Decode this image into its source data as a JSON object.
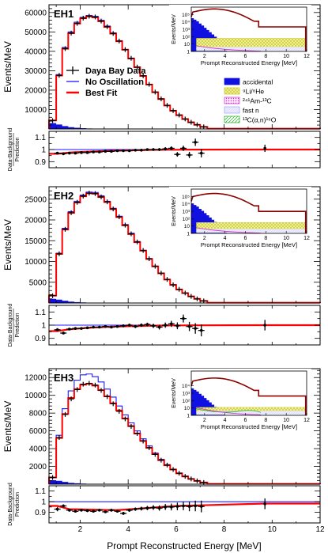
{
  "figure": {
    "x_axis_title": "Prompt Reconstructed Energy [MeV]",
    "y_axis_title": "Events/MeV",
    "ratio_axis_title_line1": "Data-Background",
    "ratio_axis_title_line2": "Prediction",
    "x_ticks": [
      "2",
      "4",
      "6",
      "8",
      "10",
      "12"
    ]
  },
  "legend": {
    "data_label": "Daya Bay Data",
    "no_osc_label": "No Oscillation",
    "best_fit_label": "Best Fit"
  },
  "inset_legend": {
    "entries": [
      {
        "name": "accidental",
        "label": "accidental",
        "color": "#1010e0",
        "pattern": "solid"
      },
      {
        "name": "li-he",
        "label": "⁹Li/⁸He",
        "color": "#d9d92a",
        "pattern": "cross"
      },
      {
        "name": "am-c",
        "label": "²⁴¹Am-¹³C",
        "color": "#d030d0",
        "pattern": "dots"
      },
      {
        "name": "fast-n",
        "label": "fast n",
        "color": "#a0a0ff",
        "pattern": "light"
      },
      {
        "name": "c-alpha",
        "label": "¹³C(α,n)¹⁶O",
        "color": "#20b020",
        "pattern": "hatch"
      }
    ]
  },
  "colors": {
    "data": "#000000",
    "no_oscillation": "#1a1aff",
    "best_fit": "#ff0000",
    "accidental_fill": "#1010e0",
    "inset_spectrum": "#8b0000"
  },
  "chart_data": [
    {
      "type": "bar",
      "panel": "main",
      "label": "EH1",
      "xlim": [
        0.7,
        12
      ],
      "ylim": [
        0,
        64000
      ],
      "yticks": [
        10000,
        20000,
        30000,
        40000,
        50000,
        60000
      ],
      "bin_edges": [
        0.7,
        1.0,
        1.25,
        1.5,
        1.75,
        2.0,
        2.25,
        2.5,
        2.75,
        3.0,
        3.25,
        3.5,
        3.75,
        4.0,
        4.25,
        4.5,
        4.75,
        5.0,
        5.25,
        5.5,
        5.75,
        6.0,
        6.25,
        6.5,
        6.75,
        7.0,
        7.3,
        12.0
      ],
      "series": [
        {
          "name": "No Oscillation",
          "values": [
            4500,
            28000,
            42000,
            50000,
            55000,
            57500,
            58500,
            58000,
            56000,
            53000,
            49500,
            45500,
            41000,
            36500,
            32000,
            27500,
            23000,
            19000,
            15500,
            12200,
            9500,
            7200,
            5200,
            3500,
            2200,
            1100,
            150
          ]
        },
        {
          "name": "Best Fit",
          "values": [
            4400,
            27500,
            41300,
            49300,
            54300,
            57000,
            58000,
            57500,
            55500,
            52600,
            49100,
            45200,
            40800,
            36300,
            31800,
            27300,
            22900,
            18900,
            15400,
            12100,
            9400,
            7100,
            5100,
            3400,
            2150,
            1080,
            145
          ]
        },
        {
          "name": "Daya Bay Data",
          "values": [
            4300,
            27600,
            41400,
            49400,
            54400,
            57100,
            58100,
            57700,
            55600,
            52700,
            49200,
            45300,
            40900,
            36400,
            31900,
            27400,
            23000,
            19000,
            15500,
            12150,
            9450,
            7150,
            5150,
            3450,
            2170,
            1090,
            150
          ]
        },
        {
          "name": "accidental",
          "values": [
            3000,
            2300,
            1500,
            900,
            600,
            400,
            250,
            150,
            100,
            60,
            40,
            20,
            10,
            5,
            0,
            0,
            0,
            0,
            0,
            0,
            0,
            0,
            0,
            0,
            0,
            0,
            0
          ]
        }
      ]
    },
    {
      "type": "scatter",
      "panel": "ratio",
      "label": "EH1",
      "xlim": [
        0.7,
        12
      ],
      "ylim": [
        0.85,
        1.15
      ],
      "yticks": [
        0.9,
        1,
        1.1
      ],
      "x": [
        1.05,
        1.3,
        1.55,
        1.8,
        2.05,
        2.3,
        2.55,
        2.8,
        3.05,
        3.3,
        3.55,
        3.8,
        4.05,
        4.3,
        4.55,
        4.8,
        5.05,
        5.3,
        5.55,
        5.8,
        6.05,
        6.3,
        6.55,
        6.8,
        7.05,
        9.7
      ],
      "y": [
        0.97,
        0.965,
        0.97,
        0.97,
        0.975,
        0.975,
        0.98,
        0.98,
        0.985,
        0.985,
        0.99,
        0.99,
        0.99,
        0.995,
        0.995,
        1.0,
        1.0,
        1.0,
        1.005,
        1.01,
        0.96,
        1.01,
        0.955,
        1.06,
        0.97,
        1.01
      ],
      "yerr": [
        0.008,
        0.007,
        0.006,
        0.006,
        0.006,
        0.006,
        0.006,
        0.006,
        0.006,
        0.006,
        0.007,
        0.007,
        0.007,
        0.008,
        0.009,
        0.01,
        0.011,
        0.012,
        0.014,
        0.016,
        0.019,
        0.022,
        0.026,
        0.03,
        0.035,
        0.03
      ],
      "fit_y": [
        0.965,
        0.97,
        0.975,
        0.978,
        0.98,
        0.982,
        0.984,
        0.986,
        0.988,
        0.99,
        0.99,
        0.992,
        0.993,
        0.994,
        0.995,
        0.996,
        0.997,
        0.997,
        0.998,
        0.998,
        0.998,
        0.999,
        0.999,
        0.999,
        0.999,
        1.0
      ]
    },
    {
      "type": "bar",
      "panel": "main",
      "label": "EH2",
      "xlim": [
        0.7,
        12
      ],
      "ylim": [
        0,
        28000
      ],
      "yticks": [
        5000,
        10000,
        15000,
        20000,
        25000
      ],
      "bin_edges": [
        0.7,
        1.0,
        1.25,
        1.5,
        1.75,
        2.0,
        2.25,
        2.5,
        2.75,
        3.0,
        3.25,
        3.5,
        3.75,
        4.0,
        4.25,
        4.5,
        4.75,
        5.0,
        5.25,
        5.5,
        5.75,
        6.0,
        6.25,
        6.5,
        6.75,
        7.0,
        7.3,
        12.0
      ],
      "series": [
        {
          "name": "No Oscillation",
          "values": [
            1800,
            12000,
            18000,
            22000,
            24500,
            26000,
            26700,
            26600,
            25800,
            24500,
            22800,
            20900,
            18900,
            16800,
            14800,
            12700,
            10700,
            8900,
            7200,
            5700,
            4400,
            3300,
            2400,
            1600,
            1000,
            500,
            70
          ]
        },
        {
          "name": "Best Fit",
          "values": [
            1780,
            11800,
            17700,
            21700,
            24200,
            25700,
            26400,
            26300,
            25500,
            24300,
            22600,
            20700,
            18700,
            16600,
            14650,
            12600,
            10600,
            8800,
            7150,
            5650,
            4350,
            3270,
            2380,
            1590,
            990,
            495,
            68
          ]
        },
        {
          "name": "Daya Bay Data",
          "values": [
            1750,
            11850,
            17750,
            21750,
            24250,
            25750,
            26450,
            26350,
            25550,
            24350,
            22650,
            20750,
            18750,
            16650,
            14700,
            12650,
            10650,
            8850,
            7180,
            5680,
            4370,
            3290,
            2400,
            1600,
            1000,
            500,
            70
          ]
        },
        {
          "name": "accidental",
          "values": [
            1000,
            800,
            550,
            330,
            220,
            150,
            90,
            55,
            35,
            20,
            12,
            6,
            3,
            0,
            0,
            0,
            0,
            0,
            0,
            0,
            0,
            0,
            0,
            0,
            0,
            0,
            0
          ]
        }
      ]
    },
    {
      "type": "scatter",
      "panel": "ratio",
      "label": "EH2",
      "xlim": [
        0.7,
        12
      ],
      "ylim": [
        0.85,
        1.15
      ],
      "yticks": [
        0.9,
        1,
        1.1
      ],
      "x": [
        1.05,
        1.3,
        1.55,
        1.8,
        2.05,
        2.3,
        2.55,
        2.8,
        3.05,
        3.3,
        3.55,
        3.8,
        4.05,
        4.3,
        4.55,
        4.8,
        5.05,
        5.3,
        5.55,
        5.8,
        6.05,
        6.3,
        6.55,
        6.8,
        7.05,
        9.7
      ],
      "y": [
        0.965,
        0.94,
        0.97,
        0.975,
        0.975,
        0.98,
        0.985,
        0.985,
        0.99,
        0.985,
        0.99,
        0.995,
        1.0,
        0.99,
        1.0,
        1.005,
        0.995,
        0.985,
        1.0,
        1.01,
        0.995,
        1.05,
        0.99,
        0.975,
        0.96,
        1.0
      ],
      "yerr": [
        0.012,
        0.01,
        0.009,
        0.009,
        0.009,
        0.009,
        0.009,
        0.009,
        0.009,
        0.009,
        0.01,
        0.01,
        0.011,
        0.012,
        0.013,
        0.014,
        0.016,
        0.018,
        0.02,
        0.023,
        0.026,
        0.03,
        0.035,
        0.04,
        0.045,
        0.04
      ],
      "fit_y": [
        0.955,
        0.962,
        0.968,
        0.972,
        0.976,
        0.979,
        0.982,
        0.984,
        0.986,
        0.988,
        0.99,
        0.991,
        0.992,
        0.993,
        0.994,
        0.995,
        0.996,
        0.997,
        0.997,
        0.998,
        0.998,
        0.998,
        0.999,
        0.999,
        0.999,
        1.0
      ]
    },
    {
      "type": "bar",
      "panel": "main",
      "label": "EH3",
      "xlim": [
        0.7,
        12
      ],
      "ylim": [
        0,
        13000
      ],
      "yticks": [
        2000,
        4000,
        6000,
        8000,
        10000,
        12000
      ],
      "bin_edges": [
        0.7,
        1.0,
        1.25,
        1.5,
        1.75,
        2.0,
        2.25,
        2.5,
        2.75,
        3.0,
        3.25,
        3.5,
        3.75,
        4.0,
        4.25,
        4.5,
        4.75,
        5.0,
        5.25,
        5.5,
        5.75,
        6.0,
        6.25,
        6.5,
        6.75,
        7.0,
        7.3,
        12.0
      ],
      "series": [
        {
          "name": "No Oscillation",
          "values": [
            800,
            5500,
            8500,
            10500,
            11700,
            12300,
            12400,
            12100,
            11500,
            10700,
            9800,
            8800,
            7800,
            6900,
            6000,
            5100,
            4300,
            3500,
            2800,
            2200,
            1700,
            1250,
            900,
            600,
            380,
            190,
            30
          ]
        },
        {
          "name": "Best Fit",
          "values": [
            760,
            5200,
            7900,
            9700,
            10700,
            11200,
            11300,
            11100,
            10600,
            9900,
            9100,
            8300,
            7400,
            6550,
            5700,
            4880,
            4100,
            3380,
            2700,
            2130,
            1650,
            1210,
            870,
            585,
            370,
            185,
            28
          ]
        },
        {
          "name": "Daya Bay Data",
          "values": [
            750,
            5250,
            7850,
            9600,
            10650,
            11250,
            11350,
            11150,
            10550,
            9850,
            9050,
            8200,
            7350,
            6500,
            5700,
            4850,
            4100,
            3350,
            2700,
            2150,
            1650,
            1230,
            880,
            590,
            375,
            188,
            29
          ]
        },
        {
          "name": "accidental",
          "values": [
            450,
            380,
            260,
            150,
            100,
            70,
            45,
            28,
            18,
            10,
            6,
            3,
            0,
            0,
            0,
            0,
            0,
            0,
            0,
            0,
            0,
            0,
            0,
            0,
            0,
            0,
            0
          ]
        }
      ]
    },
    {
      "type": "scatter",
      "panel": "ratio",
      "label": "EH3",
      "xlim": [
        0.7,
        12
      ],
      "ylim": [
        0.8,
        1.15
      ],
      "yticks": [
        0.9,
        1,
        1.1
      ],
      "x": [
        1.05,
        1.3,
        1.55,
        1.8,
        2.05,
        2.3,
        2.55,
        2.8,
        3.05,
        3.3,
        3.55,
        3.8,
        4.05,
        4.3,
        4.55,
        4.8,
        5.05,
        5.3,
        5.55,
        5.8,
        6.05,
        6.3,
        6.55,
        6.8,
        7.05,
        9.7
      ],
      "y": [
        0.93,
        0.96,
        0.92,
        0.91,
        0.92,
        0.915,
        0.91,
        0.92,
        0.905,
        0.92,
        0.91,
        0.89,
        0.92,
        0.93,
        0.935,
        0.94,
        0.945,
        0.94,
        0.95,
        0.95,
        0.955,
        0.96,
        0.955,
        0.96,
        0.955,
        0.98
      ],
      "yerr": [
        0.02,
        0.015,
        0.013,
        0.012,
        0.012,
        0.012,
        0.012,
        0.012,
        0.012,
        0.013,
        0.013,
        0.014,
        0.015,
        0.016,
        0.018,
        0.02,
        0.022,
        0.025,
        0.028,
        0.032,
        0.036,
        0.04,
        0.045,
        0.05,
        0.055,
        0.05
      ]
    },
    {
      "type": "bar",
      "panel": "inset",
      "label": "EH1",
      "log_scale": true,
      "xlim": [
        0.7,
        12
      ],
      "ylim": [
        1,
        1000000
      ],
      "yticks_labels": [
        "1",
        "10",
        "10²",
        "10³",
        "10⁴",
        "10⁵"
      ],
      "x_ticks": [
        "2",
        "4",
        "6",
        "8",
        "10",
        "12"
      ],
      "y_axis_title": "Events/MeV",
      "x_axis_title": "Prompt Reconstructed Energy [MeV]"
    },
    {
      "type": "bar",
      "panel": "inset",
      "label": "EH2",
      "log_scale": true,
      "xlim": [
        0.7,
        12
      ],
      "ylim": [
        1,
        1000000
      ],
      "yticks_labels": [
        "1",
        "10",
        "10²",
        "10³",
        "10⁴",
        "10⁵"
      ],
      "x_ticks": [
        "2",
        "4",
        "6",
        "8",
        "10",
        "12"
      ],
      "y_axis_title": "Events/MeV",
      "x_axis_title": "Prompt Reconstructed Energy [MeV]"
    },
    {
      "type": "bar",
      "panel": "inset",
      "label": "EH3",
      "log_scale": true,
      "xlim": [
        0.7,
        12
      ],
      "ylim": [
        1,
        1000000
      ],
      "yticks_labels": [
        "1",
        "10",
        "10²",
        "10³",
        "10⁴"
      ],
      "x_ticks": [
        "2",
        "4",
        "6",
        "8",
        "10",
        "12"
      ],
      "y_axis_title": "Events/MeV",
      "x_axis_title": "Prompt Reconstructed Energy [MeV]"
    }
  ]
}
